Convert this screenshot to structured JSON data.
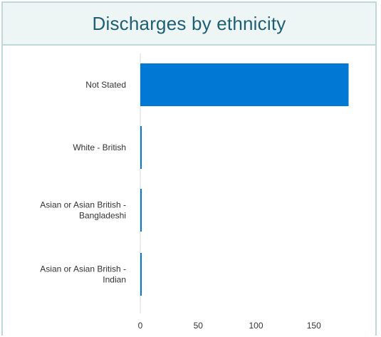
{
  "chart_data": {
    "type": "bar",
    "orientation": "horizontal",
    "title": "Discharges by ethnicity",
    "categories": [
      [
        "Not Stated"
      ],
      [
        "White - British"
      ],
      [
        "Asian or Asian British -",
        "Bangladeshi"
      ],
      [
        "Asian or Asian British -",
        "Indian"
      ]
    ],
    "values": [
      180,
      1,
      1,
      1
    ],
    "xlim": [
      0,
      190
    ],
    "xticks": [
      0,
      50,
      100,
      150
    ],
    "grid": false,
    "legend": "none",
    "bar_color": "#0078d4"
  }
}
